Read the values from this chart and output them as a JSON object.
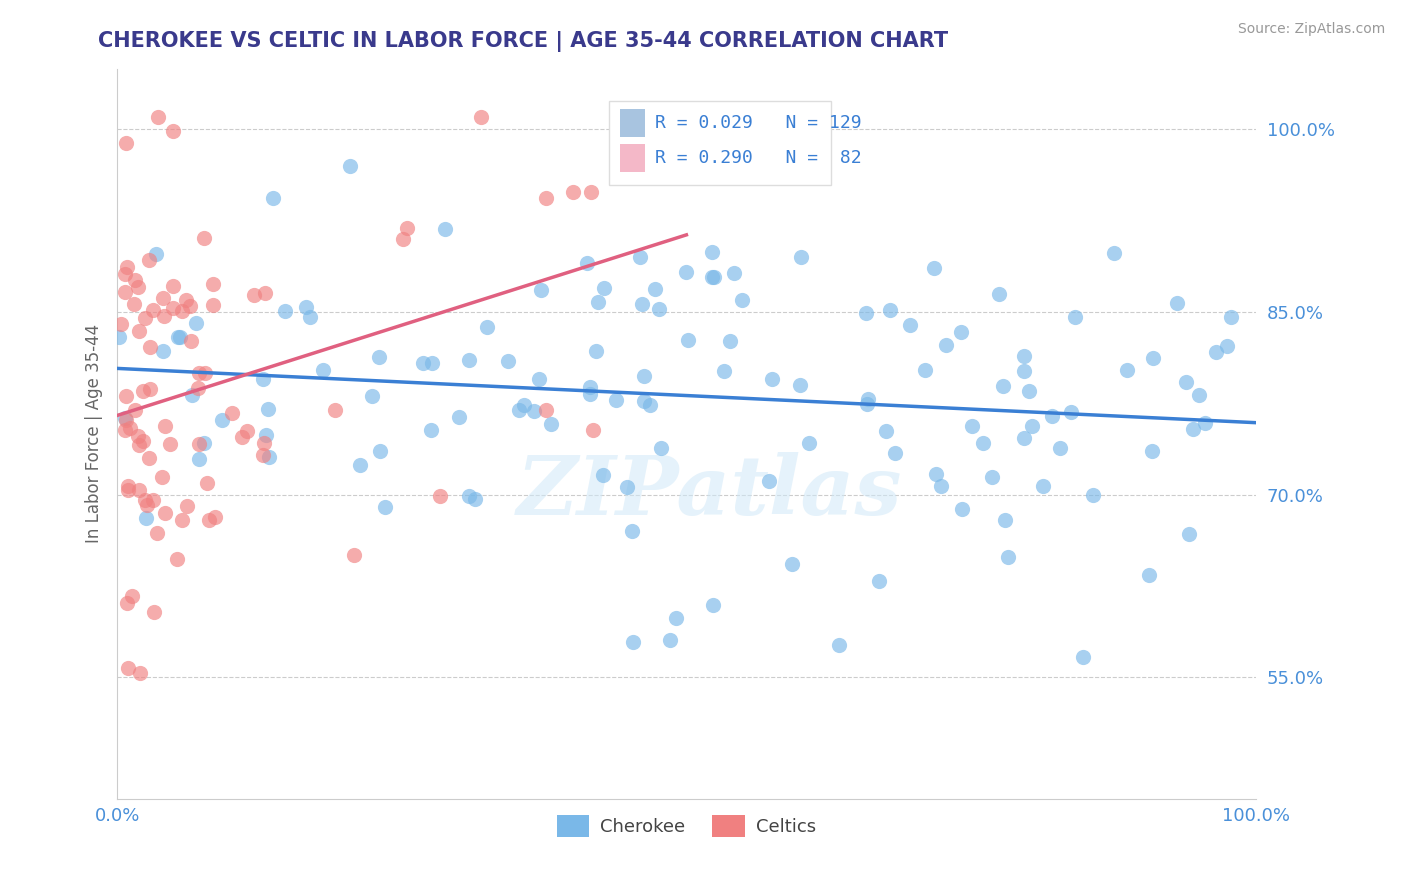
{
  "title": "CHEROKEE VS CELTIC IN LABOR FORCE | AGE 35-44 CORRELATION CHART",
  "source_text": "Source: ZipAtlas.com",
  "ylabel": "In Labor Force | Age 35-44",
  "legend_R_N": [
    {
      "R": "0.029",
      "N": "129",
      "color": "#a8c4e0"
    },
    {
      "R": "0.290",
      "N": " 82",
      "color": "#f4b8c8"
    }
  ],
  "watermark": "ZIPatlas",
  "cherokee_color": "#7ab8e8",
  "celtics_color": "#f08080",
  "cherokee_line_color": "#3a7fd4",
  "celtics_line_color": "#e06080",
  "title_color": "#3a3a8c",
  "grid_color": "#cccccc",
  "xlim": [
    0.0,
    1.0
  ],
  "ylim": [
    0.45,
    1.05
  ],
  "yticks": [
    0.55,
    0.7,
    0.85,
    1.0
  ],
  "ytick_labels": [
    "55.0%",
    "70.0%",
    "85.0%",
    "100.0%"
  ]
}
